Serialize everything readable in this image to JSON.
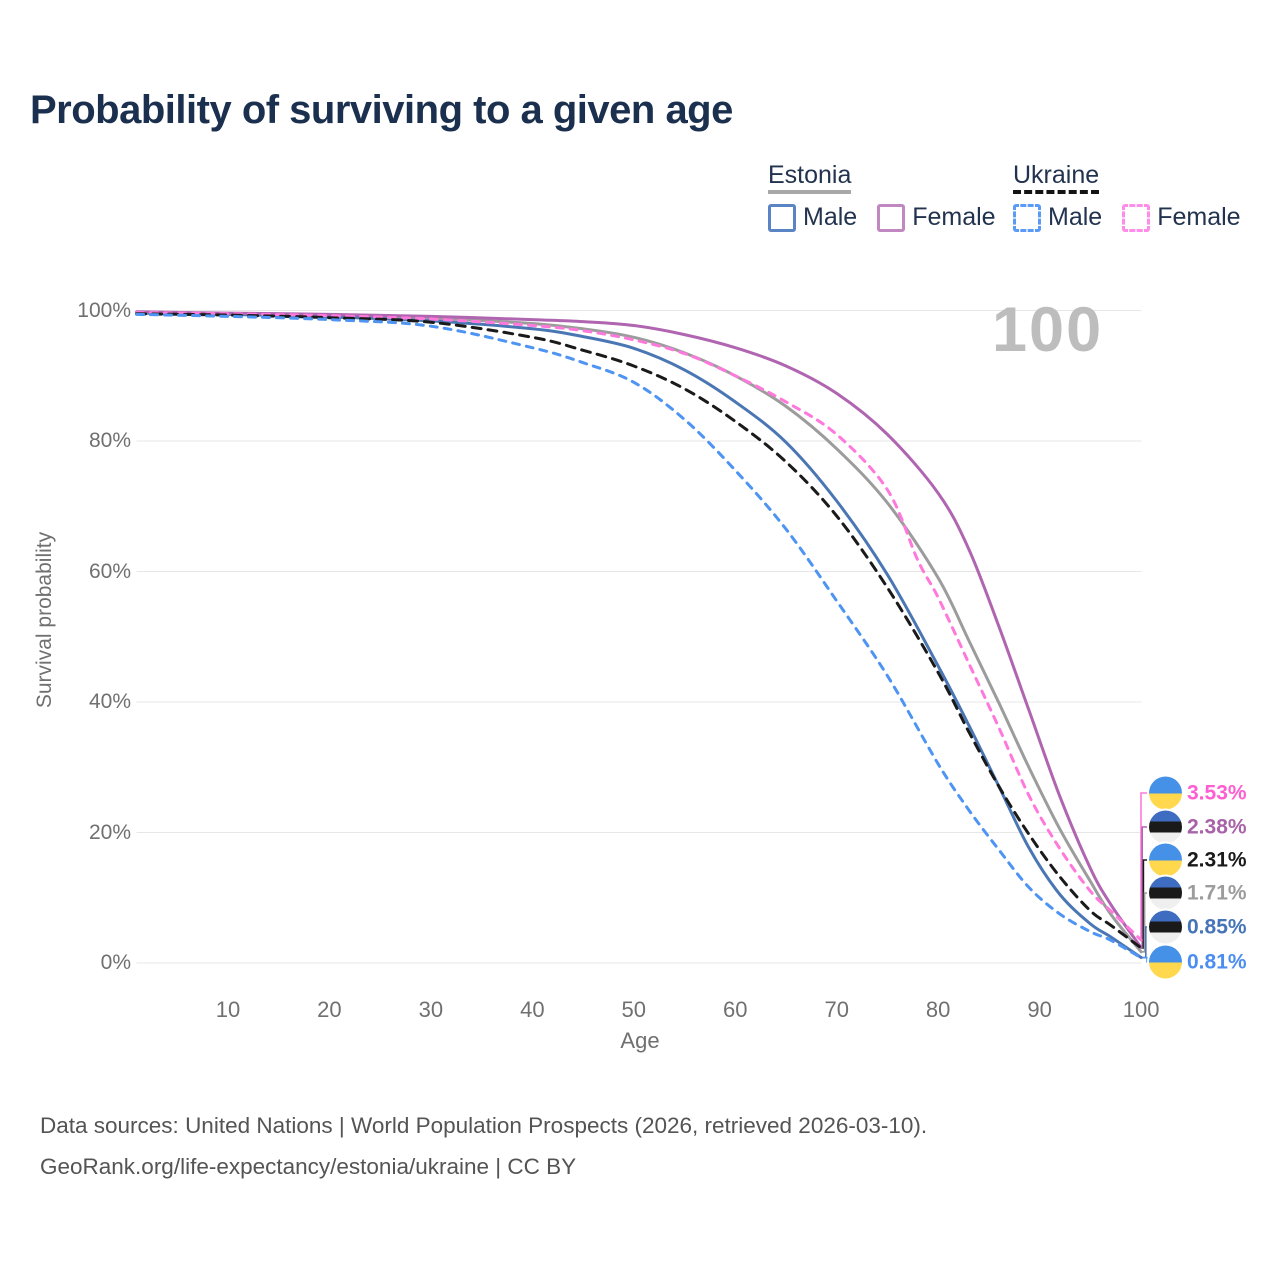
{
  "title": "Probability of surviving to a given age",
  "legend": {
    "groups": [
      {
        "name": "Estonia",
        "line_style": "solid",
        "underline_color": "#A8A8A8",
        "items": [
          {
            "label": "Male",
            "color": "#5B84C4",
            "dashed": false
          },
          {
            "label": "Female",
            "color": "#C187C0",
            "dashed": false
          }
        ]
      },
      {
        "name": "Ukraine",
        "line_style": "dashed",
        "underline_color": "#141414",
        "items": [
          {
            "label": "Male",
            "color": "#5B9BF8",
            "dashed": true
          },
          {
            "label": "Female",
            "color": "#FF8CE8",
            "dashed": true
          }
        ]
      }
    ]
  },
  "chart_data": {
    "type": "line",
    "title": "Probability of surviving to a given age",
    "xlabel": "Age",
    "ylabel": "Survival probability",
    "hover_age_indicator": "100",
    "xlim": [
      1,
      100
    ],
    "ylim": [
      0,
      100
    ],
    "grid": "horizontal",
    "legend_position": "top-right",
    "x_ticks": [
      "10",
      "20",
      "30",
      "40",
      "50",
      "60",
      "70",
      "80",
      "90",
      "100"
    ],
    "y_ticks": [
      {
        "pct": 100,
        "label": "100%"
      },
      {
        "pct": 80,
        "label": "80%"
      },
      {
        "pct": 60,
        "label": "60%"
      },
      {
        "pct": 40,
        "label": "40%"
      },
      {
        "pct": 20,
        "label": "20%"
      },
      {
        "pct": 0,
        "label": "0%"
      }
    ],
    "series": [
      {
        "name": "Estonia Both",
        "country": "Estonia",
        "sex": "both",
        "color": "#9C9C9C",
        "dash": "",
        "end_value": "1.71%",
        "points": [
          [
            1,
            99.7
          ],
          [
            10,
            99.5
          ],
          [
            20,
            99.2
          ],
          [
            30,
            98.8
          ],
          [
            40,
            98.0
          ],
          [
            45,
            97.2
          ],
          [
            50,
            95.9
          ],
          [
            55,
            93.5
          ],
          [
            60,
            90.0
          ],
          [
            65,
            85.3
          ],
          [
            70,
            78.8
          ],
          [
            75,
            70.5
          ],
          [
            80,
            59.0
          ],
          [
            83,
            49.5
          ],
          [
            86,
            39.8
          ],
          [
            89,
            29.8
          ],
          [
            92,
            20.5
          ],
          [
            95,
            12.5
          ],
          [
            97,
            7.5
          ],
          [
            100,
            1.71
          ]
        ]
      },
      {
        "name": "Estonia Male",
        "country": "Estonia",
        "sex": "male",
        "color": "#4A77B4",
        "dash": "",
        "end_value": "0.85%",
        "points": [
          [
            1,
            99.6
          ],
          [
            10,
            99.4
          ],
          [
            20,
            99.0
          ],
          [
            30,
            98.4
          ],
          [
            40,
            97.2
          ],
          [
            45,
            96.0
          ],
          [
            50,
            94.2
          ],
          [
            55,
            90.9
          ],
          [
            60,
            86.0
          ],
          [
            65,
            79.8
          ],
          [
            70,
            70.8
          ],
          [
            75,
            59.5
          ],
          [
            80,
            45.5
          ],
          [
            83,
            36.5
          ],
          [
            86,
            27.0
          ],
          [
            89,
            17.5
          ],
          [
            92,
            10.5
          ],
          [
            95,
            6.0
          ],
          [
            97,
            4.0
          ],
          [
            100,
            0.85
          ]
        ]
      },
      {
        "name": "Estonia Female",
        "country": "Estonia",
        "sex": "female",
        "color": "#B065B0",
        "dash": "",
        "end_value": "2.38%",
        "points": [
          [
            1,
            99.8
          ],
          [
            10,
            99.6
          ],
          [
            20,
            99.4
          ],
          [
            30,
            99.1
          ],
          [
            40,
            98.6
          ],
          [
            45,
            98.3
          ],
          [
            50,
            97.7
          ],
          [
            55,
            96.3
          ],
          [
            60,
            94.3
          ],
          [
            65,
            91.5
          ],
          [
            70,
            87.3
          ],
          [
            75,
            81.0
          ],
          [
            80,
            72.0
          ],
          [
            83,
            63.5
          ],
          [
            86,
            51.5
          ],
          [
            89,
            38.5
          ],
          [
            92,
            25.5
          ],
          [
            95,
            14.5
          ],
          [
            97,
            9.0
          ],
          [
            100,
            2.38
          ]
        ]
      },
      {
        "name": "Ukraine Female",
        "country": "Ukraine",
        "sex": "female",
        "color": "#FF79DC",
        "dash": "7 7",
        "end_value": "3.53%",
        "points": [
          [
            1,
            99.7
          ],
          [
            10,
            99.5
          ],
          [
            20,
            99.2
          ],
          [
            30,
            98.7
          ],
          [
            40,
            97.7
          ],
          [
            45,
            96.9
          ],
          [
            50,
            95.5
          ],
          [
            55,
            93.4
          ],
          [
            60,
            90.0
          ],
          [
            65,
            86.0
          ],
          [
            70,
            81.0
          ],
          [
            75,
            72.5
          ],
          [
            78,
            61.7
          ],
          [
            80,
            56.0
          ],
          [
            83,
            46.0
          ],
          [
            86,
            36.0
          ],
          [
            89,
            25.5
          ],
          [
            92,
            17.5
          ],
          [
            95,
            11.0
          ],
          [
            97,
            8.0
          ],
          [
            100,
            3.53
          ]
        ]
      },
      {
        "name": "Ukraine Both",
        "country": "Ukraine",
        "sex": "both",
        "color": "#1A1A1A",
        "dash": "9 7",
        "end_value": "2.31%",
        "points": [
          [
            1,
            99.5
          ],
          [
            10,
            99.3
          ],
          [
            20,
            98.9
          ],
          [
            30,
            98.2
          ],
          [
            40,
            95.9
          ],
          [
            45,
            93.9
          ],
          [
            50,
            91.5
          ],
          [
            55,
            88.0
          ],
          [
            60,
            83.0
          ],
          [
            65,
            76.8
          ],
          [
            70,
            68.5
          ],
          [
            75,
            57.5
          ],
          [
            80,
            44.5
          ],
          [
            83,
            35.5
          ],
          [
            86,
            27.0
          ],
          [
            89,
            19.6
          ],
          [
            92,
            13.2
          ],
          [
            95,
            8.0
          ],
          [
            97,
            5.8
          ],
          [
            100,
            2.31
          ]
        ]
      },
      {
        "name": "Ukraine Male",
        "country": "Ukraine",
        "sex": "male",
        "color": "#4E94F2",
        "dash": "7 7",
        "end_value": "0.81%",
        "points": [
          [
            1,
            99.4
          ],
          [
            10,
            99.1
          ],
          [
            20,
            98.6
          ],
          [
            30,
            97.6
          ],
          [
            40,
            94.3
          ],
          [
            45,
            92.0
          ],
          [
            50,
            89.0
          ],
          [
            55,
            83.3
          ],
          [
            60,
            75.5
          ],
          [
            65,
            66.5
          ],
          [
            70,
            55.5
          ],
          [
            75,
            44.0
          ],
          [
            80,
            30.5
          ],
          [
            83,
            23.5
          ],
          [
            86,
            17.3
          ],
          [
            89,
            11.5
          ],
          [
            92,
            7.5
          ],
          [
            95,
            4.8
          ],
          [
            97,
            3.5
          ],
          [
            100,
            0.81
          ]
        ]
      }
    ]
  },
  "end_labels": [
    {
      "series": "Ukraine Female",
      "flag": "ukraine",
      "value": "3.53%",
      "color": "#FF5ED2"
    },
    {
      "series": "Estonia Female",
      "flag": "estonia",
      "value": "2.38%",
      "color": "#A863A8"
    },
    {
      "series": "Ukraine Both",
      "flag": "ukraine",
      "value": "2.31%",
      "color": "#1A1A1A"
    },
    {
      "series": "Estonia Both",
      "flag": "estonia",
      "value": "1.71%",
      "color": "#9C9C9C"
    },
    {
      "series": "Estonia Male",
      "flag": "estonia",
      "value": "0.85%",
      "color": "#4674B8"
    },
    {
      "series": "Ukraine Male",
      "flag": "ukraine",
      "value": "0.81%",
      "color": "#4B8DF0"
    }
  ],
  "flag_colors": {
    "estonia": [
      "#3D6CC0",
      "#1A1A1A",
      "#EFEFEF"
    ],
    "ukraine": [
      "#4591E8",
      "#FFD84D"
    ]
  },
  "footer": {
    "line1": "Data sources: United Nations | World Population Prospects (2026, retrieved 2026-03-10).",
    "line2": "GeoRank.org/life-expectancy/estonia/ukraine | CC BY"
  }
}
